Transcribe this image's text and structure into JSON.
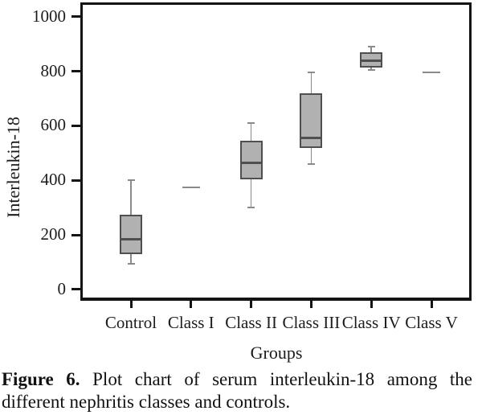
{
  "figure": {
    "caption_label": "Figure 6.",
    "caption_line1": "Plot chart of serum interleukin-18 among the",
    "caption_line2": "different nephritis classes and controls."
  },
  "chart_data": {
    "type": "boxplot",
    "title": "",
    "xlabel": "Groups",
    "ylabel": "Interleukin-18",
    "categories": [
      "Control",
      "Class I",
      "Class II",
      "Class III",
      "Class IV",
      "Class V"
    ],
    "y_ticks": [
      0,
      200,
      400,
      600,
      800,
      1000
    ],
    "ylim": [
      -30,
      1044
    ],
    "grid": false,
    "legend": "none",
    "series": [
      {
        "group": "Control",
        "min": 95,
        "q1": 130,
        "median": 185,
        "q3": 275,
        "max": 400
      },
      {
        "group": "Class I",
        "value": 375
      },
      {
        "group": "Class II",
        "min": 300,
        "q1": 405,
        "median": 465,
        "q3": 545,
        "max": 610
      },
      {
        "group": "Class III",
        "min": 460,
        "q1": 520,
        "median": 555,
        "q3": 720,
        "max": 795
      },
      {
        "group": "Class IV",
        "min": 805,
        "q1": 815,
        "median": 840,
        "q3": 870,
        "max": 890
      },
      {
        "group": "Class V",
        "value": 795
      }
    ],
    "colors": {
      "box_fill": "#b1b1b1",
      "box_border": "#4f4f4f",
      "median": "#4f4f4f",
      "whisker": "#8a8a8a",
      "axis": "#141414",
      "text": "#1c1c1c"
    }
  }
}
